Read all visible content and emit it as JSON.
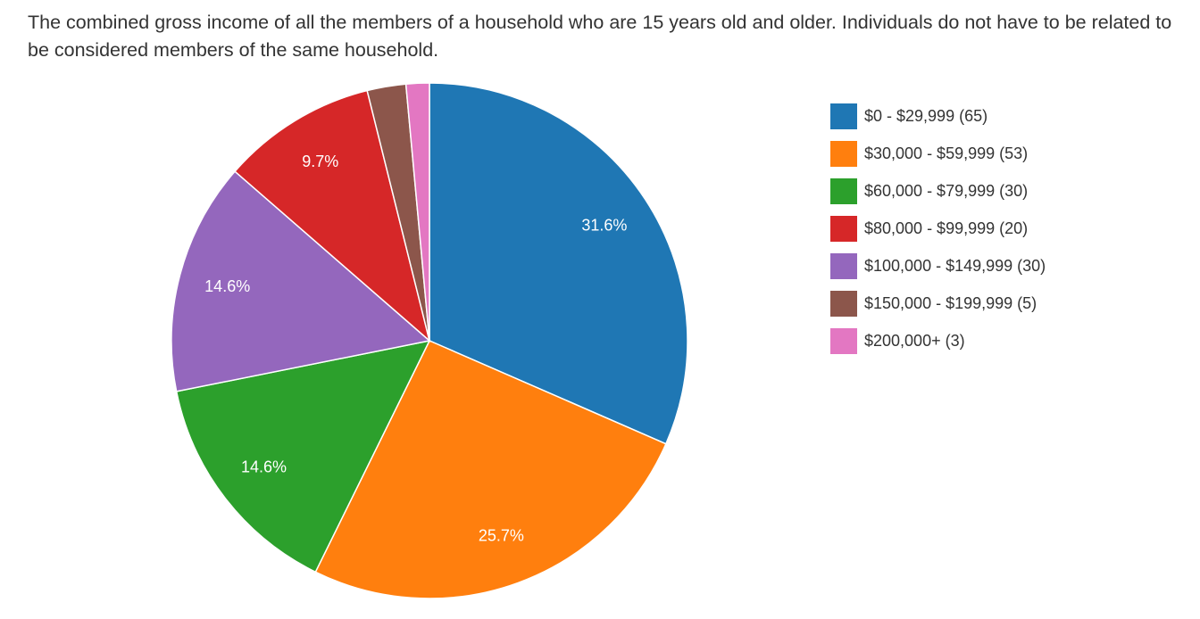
{
  "question": {
    "text": "The combined gross income of all the members of a household who are 15 years old and older. Individuals do not have to be related to be considered members of the same household."
  },
  "chart_data": {
    "type": "pie",
    "categories": [
      "$0 - $29,999",
      "$30,000 - $59,999",
      "$60,000 - $79,999",
      "$80,000 - $99,999",
      "$100,000 - $149,999",
      "$150,000 - $199,999",
      "$200,000+"
    ],
    "values": [
      65,
      53,
      30,
      20,
      30,
      5,
      3
    ],
    "slice_order": [
      0,
      1,
      2,
      4,
      3,
      5,
      6
    ],
    "percent_labels": [
      "31.6%",
      "25.7%",
      "14.6%",
      "9.7%",
      "14.6%",
      "",
      ""
    ],
    "legend_labels": [
      "$0 - $29,999 (65)",
      "$30,000 - $59,999 (53)",
      "$60,000 - $79,999 (30)",
      "$80,000 - $99,999 (20)",
      "$100,000 - $149,999 (30)",
      "$150,000 - $199,999 (5)",
      "$200,000+ (3)"
    ],
    "colors": [
      "#1f77b4",
      "#ff7f0e",
      "#2ca02c",
      "#d62728",
      "#9467bd",
      "#8c564b",
      "#e377c2"
    ],
    "legend_position": "right"
  }
}
